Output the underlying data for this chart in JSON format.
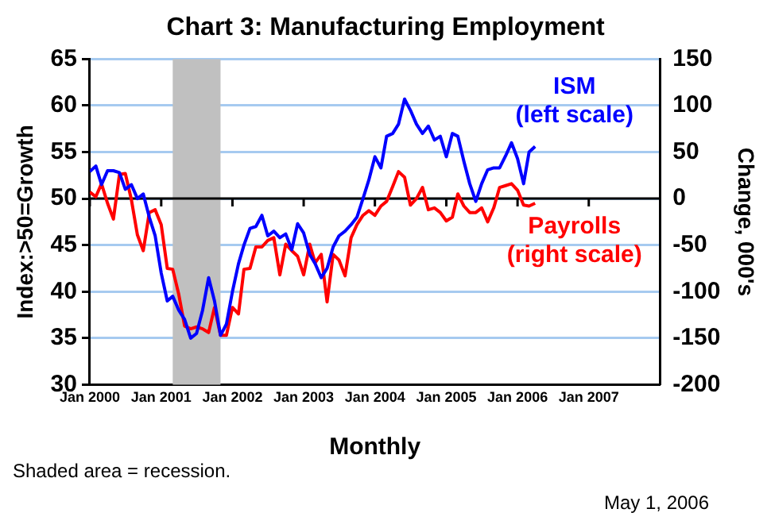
{
  "chart_data": {
    "type": "line",
    "title": "Chart 3: Manufacturing Employment",
    "xlabel": "Monthly",
    "ylabel": "Index:>50=Growth",
    "y2label": "Change, 000's",
    "annotations": [
      "Shaded area = recession.",
      "May 1, 2006"
    ],
    "x": [
      "2000-01",
      "2000-02",
      "2000-03",
      "2000-04",
      "2000-05",
      "2000-06",
      "2000-07",
      "2000-08",
      "2000-09",
      "2000-10",
      "2000-11",
      "2000-12",
      "2001-01",
      "2001-02",
      "2001-03",
      "2001-04",
      "2001-05",
      "2001-06",
      "2001-07",
      "2001-08",
      "2001-09",
      "2001-10",
      "2001-11",
      "2001-12",
      "2002-01",
      "2002-02",
      "2002-03",
      "2002-04",
      "2002-05",
      "2002-06",
      "2002-07",
      "2002-08",
      "2002-09",
      "2002-10",
      "2002-11",
      "2002-12",
      "2003-01",
      "2003-02",
      "2003-03",
      "2003-04",
      "2003-05",
      "2003-06",
      "2003-07",
      "2003-08",
      "2003-09",
      "2003-10",
      "2003-11",
      "2003-12",
      "2004-01",
      "2004-02",
      "2004-03",
      "2004-04",
      "2004-05",
      "2004-06",
      "2004-07",
      "2004-08",
      "2004-09",
      "2004-10",
      "2004-11",
      "2004-12",
      "2005-01",
      "2005-02",
      "2005-03",
      "2005-04",
      "2005-05",
      "2005-06",
      "2005-07",
      "2005-08",
      "2005-09",
      "2005-10",
      "2005-11",
      "2005-12",
      "2006-01",
      "2006-02",
      "2006-03",
      "2006-04"
    ],
    "series": [
      {
        "name": "ISM\n(left scale)",
        "color": "#0000ff",
        "axis": "y",
        "values": [
          52.9,
          53.5,
          51.5,
          53,
          53,
          52.8,
          51,
          51.5,
          50,
          50.5,
          48,
          46,
          42,
          39,
          39.5,
          38,
          37,
          35,
          35.5,
          38,
          41.5,
          39,
          35.3,
          36.5,
          40,
          43,
          45,
          46.8,
          47,
          48.2,
          46,
          46.5,
          45.8,
          46.2,
          44.5,
          47.3,
          46.3,
          44,
          43,
          41.5,
          42.5,
          44.8,
          46,
          46.5,
          47.2,
          48,
          50,
          52,
          54.5,
          53.3,
          56.7,
          57,
          58,
          60.7,
          59.5,
          58,
          57,
          57.8,
          56.3,
          56.7,
          54.5,
          57,
          56.7,
          54,
          51.6,
          49.7,
          51.6,
          53.1,
          53.3,
          53.3,
          54.6,
          56,
          54.3,
          51.6,
          55,
          55.6
        ]
      },
      {
        "name": "Payrolls\n(right scale)",
        "color": "#ff0000",
        "axis": "y2",
        "values": [
          7,
          2,
          16,
          -5,
          -22,
          26,
          27,
          -1,
          -39,
          -56,
          -15,
          -12,
          -28,
          -75,
          -76,
          -103,
          -137,
          -140,
          -138,
          -140,
          -144,
          -117,
          -147,
          -147,
          -117,
          -124,
          -76,
          -75,
          -52,
          -52,
          -45,
          -42,
          -82,
          -49,
          -56,
          -62,
          -82,
          -49,
          -69,
          -60,
          -111,
          -60,
          -66,
          -83,
          -42,
          -28,
          -18,
          -13,
          -18,
          -8,
          -3,
          13,
          29,
          23,
          -7,
          0,
          12,
          -12,
          -10,
          -15,
          -24,
          -20,
          5,
          -8,
          -15,
          -15,
          -10,
          -25,
          -10,
          12,
          14,
          16,
          9,
          -7,
          -8,
          -5
        ]
      }
    ],
    "xlim": [
      "2000-01",
      "2008-01"
    ],
    "xticks": [
      {
        "value": "2000-01",
        "label": "Jan 2000"
      },
      {
        "value": "2001-01",
        "label": "Jan 2001"
      },
      {
        "value": "2002-01",
        "label": "Jan 2002"
      },
      {
        "value": "2003-01",
        "label": "Jan 2003"
      },
      {
        "value": "2004-01",
        "label": "Jan 2004"
      },
      {
        "value": "2005-01",
        "label": "Jan 2005"
      },
      {
        "value": "2006-01",
        "label": "Jan 2006"
      },
      {
        "value": "2007-01",
        "label": "Jan 2007"
      }
    ],
    "ylim": [
      30,
      65
    ],
    "yticks": [
      30,
      35,
      40,
      45,
      50,
      55,
      60,
      65
    ],
    "y2lim": [
      -200,
      150
    ],
    "y2ticks": [
      -200,
      -150,
      -100,
      -50,
      0,
      50,
      100,
      150
    ],
    "bands": [
      {
        "axis": "x",
        "from": "2001-03",
        "to": "2001-11",
        "color": "#c0c0c0"
      }
    ],
    "ref_lines": [
      {
        "axis": "y",
        "value": 50,
        "color": "#000000"
      }
    ],
    "grid": "y",
    "legend": false,
    "marker": "none",
    "line_style": "solid"
  }
}
